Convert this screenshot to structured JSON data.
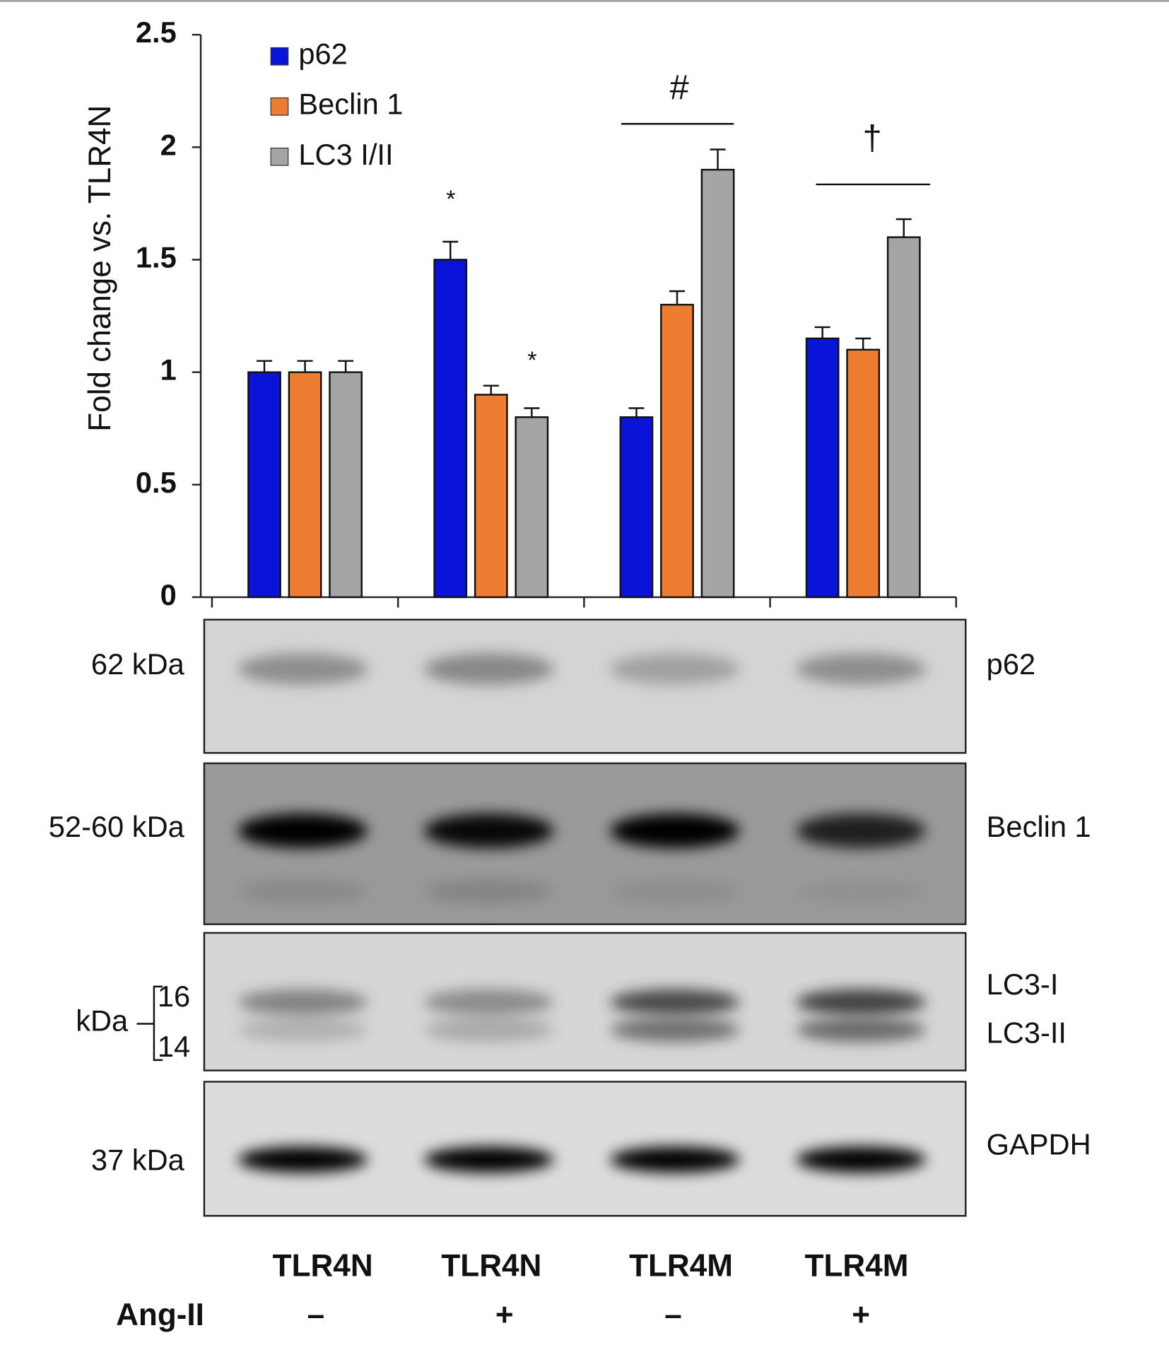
{
  "chart_data": {
    "type": "bar",
    "y_label": "Fold change vs. TLR4N",
    "categories": [
      "TLR4N",
      "TLR4N",
      "TLR4M",
      "TLR4M"
    ],
    "treatment_label": "Ang-II",
    "treatment": [
      "–",
      "+",
      "–",
      "+"
    ],
    "series": [
      {
        "name": "p62",
        "color": "#0a14d8",
        "values": [
          1.0,
          1.5,
          0.8,
          1.15
        ],
        "errors": [
          0.05,
          0.08,
          0.04,
          0.05
        ]
      },
      {
        "name": "Beclin 1",
        "color": "#ef7d31",
        "values": [
          1.0,
          0.9,
          1.3,
          1.1
        ],
        "errors": [
          0.05,
          0.04,
          0.06,
          0.05
        ]
      },
      {
        "name": "LC3 I/II",
        "color": "#a5a5a5",
        "values": [
          1.0,
          0.8,
          1.9,
          1.6
        ],
        "errors": [
          0.05,
          0.04,
          0.09,
          0.08
        ]
      }
    ],
    "annotations": [
      "*",
      "*",
      "#",
      "†"
    ],
    "ylim": [
      0,
      2.5
    ],
    "yticks": [
      0,
      0.5,
      1,
      1.5,
      2,
      2.5
    ],
    "grid": false,
    "legend": "top-left"
  },
  "blots": {
    "left_labels": [
      "62 kDa",
      "52-60 kDa",
      "kDa",
      "37 kDa"
    ],
    "lc3_sizes": [
      "16",
      "14"
    ],
    "right_labels": [
      "p62",
      "Beclin 1",
      "LC3-I",
      "LC3-II",
      "GAPDH"
    ]
  }
}
